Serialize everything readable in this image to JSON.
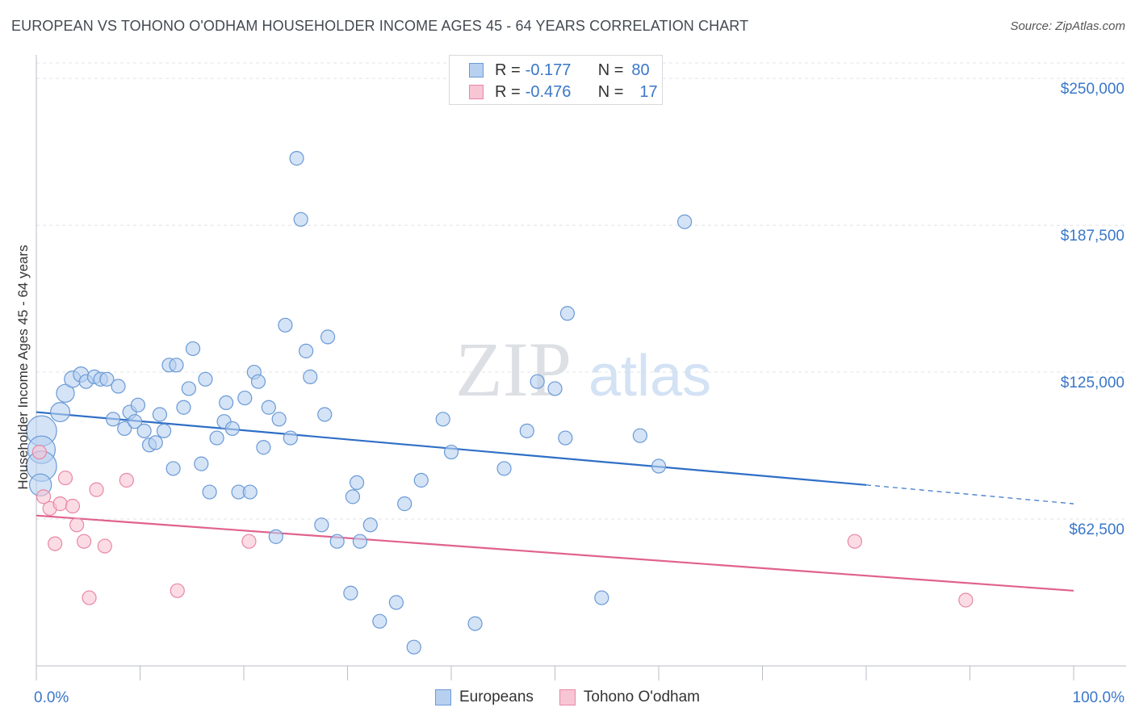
{
  "title": "EUROPEAN VS TOHONO O'ODHAM HOUSEHOLDER INCOME AGES 45 - 64 YEARS CORRELATION CHART",
  "source": "Source: ZipAtlas.com",
  "watermark": {
    "zip": "ZIP",
    "atlas": "atlas"
  },
  "colors": {
    "blue_fill": "#b7d0f0",
    "blue_stroke": "#6a9ad6",
    "blue_line": "#2f6fc6",
    "pink_fill": "#f8c5d4",
    "pink_stroke": "#e887a6",
    "pink_line": "#e0628d",
    "axis_label": "#3a77c9",
    "grid": "#dfe3e8"
  },
  "legend_top": [
    {
      "r_label": "R =",
      "r_value": "-0.177",
      "n_label": "N =",
      "n_value": "80"
    },
    {
      "r_label": "R =",
      "r_value": "-0.476",
      "n_label": "N =",
      "n_value": "17"
    }
  ],
  "legend_bottom": [
    "Europeans",
    "Tohono O'odham"
  ],
  "chart_data": {
    "type": "scatter",
    "title": "EUROPEAN VS TOHONO O'ODHAM HOUSEHOLDER INCOME AGES 45 - 64 YEARS CORRELATION CHART",
    "xlabel": "",
    "ylabel": "Householder Income Ages 45 - 64 years",
    "xlim": [
      0,
      100
    ],
    "ylim": [
      0,
      260000
    ],
    "x_tick_labels": [
      "0.0%",
      "100.0%"
    ],
    "y_ticks": [
      62500,
      125000,
      187500,
      250000
    ],
    "y_tick_labels": [
      "$62,500",
      "$125,000",
      "$187,500",
      "$250,000"
    ],
    "grid": true,
    "legend_position": "top-center",
    "series": [
      {
        "name": "Europeans",
        "r": -0.177,
        "n": 80,
        "trend": {
          "x0": 0,
          "y0": 108000,
          "x1": 80,
          "y1": 77000,
          "dash_to_x": 100,
          "dash_to_y": 69000
        },
        "points": [
          [
            0.5,
            100000,
            2.2
          ],
          [
            0.5,
            92000,
            2.0
          ],
          [
            0.5,
            85000,
            2.2
          ],
          [
            0.4,
            77000,
            1.6
          ],
          [
            2.3,
            108000,
            1.4
          ],
          [
            2.8,
            116000,
            1.3
          ],
          [
            3.5,
            122000,
            1.2
          ],
          [
            4.3,
            124000,
            1.1
          ],
          [
            4.8,
            121000,
            1.0
          ],
          [
            5.6,
            123000,
            1.0
          ],
          [
            6.2,
            122000,
            1.0
          ],
          [
            6.8,
            122000,
            1.0
          ],
          [
            7.9,
            119000,
            1.0
          ],
          [
            7.4,
            105000,
            1.0
          ],
          [
            8.5,
            101000,
            1.0
          ],
          [
            9.0,
            108000,
            1.0
          ],
          [
            9.5,
            104000,
            1.0
          ],
          [
            9.8,
            111000,
            1.0
          ],
          [
            10.4,
            100000,
            1.0
          ],
          [
            10.9,
            94000,
            1.0
          ],
          [
            11.5,
            95000,
            1.0
          ],
          [
            11.9,
            107000,
            1.0
          ],
          [
            12.3,
            100000,
            1.0
          ],
          [
            12.8,
            128000,
            1.0
          ],
          [
            13.2,
            84000,
            1.0
          ],
          [
            13.5,
            128000,
            1.0
          ],
          [
            14.2,
            110000,
            1.0
          ],
          [
            14.7,
            118000,
            1.0
          ],
          [
            15.1,
            135000,
            1.0
          ],
          [
            15.9,
            86000,
            1.0
          ],
          [
            16.3,
            122000,
            1.0
          ],
          [
            16.7,
            74000,
            1.0
          ],
          [
            17.4,
            97000,
            1.0
          ],
          [
            18.1,
            104000,
            1.0
          ],
          [
            18.3,
            112000,
            1.0
          ],
          [
            18.9,
            101000,
            1.0
          ],
          [
            19.5,
            74000,
            1.0
          ],
          [
            20.1,
            114000,
            1.0
          ],
          [
            20.6,
            74000,
            1.0
          ],
          [
            21.0,
            125000,
            1.0
          ],
          [
            21.4,
            121000,
            1.0
          ],
          [
            21.9,
            93000,
            1.0
          ],
          [
            22.4,
            110000,
            1.0
          ],
          [
            23.1,
            55000,
            1.0
          ],
          [
            23.4,
            105000,
            1.0
          ],
          [
            24.0,
            145000,
            1.0
          ],
          [
            24.5,
            97000,
            1.0
          ],
          [
            25.1,
            216000,
            1.0
          ],
          [
            25.5,
            190000,
            1.0
          ],
          [
            26.0,
            134000,
            1.0
          ],
          [
            26.4,
            123000,
            1.0
          ],
          [
            27.5,
            60000,
            1.0
          ],
          [
            27.8,
            107000,
            1.0
          ],
          [
            28.1,
            140000,
            1.0
          ],
          [
            29.0,
            53000,
            1.0
          ],
          [
            30.3,
            31000,
            1.0
          ],
          [
            30.5,
            72000,
            1.0
          ],
          [
            30.9,
            78000,
            1.0
          ],
          [
            31.2,
            53000,
            1.0
          ],
          [
            32.2,
            60000,
            1.0
          ],
          [
            33.1,
            19000,
            1.0
          ],
          [
            34.7,
            27000,
            1.0
          ],
          [
            35.5,
            69000,
            1.0
          ],
          [
            36.4,
            8000,
            1.0
          ],
          [
            37.1,
            79000,
            1.0
          ],
          [
            39.2,
            105000,
            1.0
          ],
          [
            40.0,
            91000,
            1.0
          ],
          [
            42.3,
            18000,
            1.0
          ],
          [
            45.1,
            84000,
            1.0
          ],
          [
            47.3,
            100000,
            1.0
          ],
          [
            48.3,
            121000,
            1.0
          ],
          [
            50.0,
            118000,
            1.0
          ],
          [
            51.0,
            97000,
            1.0
          ],
          [
            51.2,
            150000,
            1.0
          ],
          [
            54.5,
            29000,
            1.0
          ],
          [
            58.2,
            98000,
            1.0
          ],
          [
            60.0,
            85000,
            1.0
          ],
          [
            62.5,
            189000,
            1.0
          ]
        ]
      },
      {
        "name": "Tohono O'odham",
        "r": -0.476,
        "n": 17,
        "trend": {
          "x0": 0,
          "y0": 64000,
          "x1": 100,
          "y1": 32000
        },
        "points": [
          [
            0.3,
            91000,
            1.0
          ],
          [
            0.7,
            72000,
            1.0
          ],
          [
            1.3,
            67000,
            1.0
          ],
          [
            1.8,
            52000,
            1.0
          ],
          [
            2.3,
            69000,
            1.0
          ],
          [
            2.8,
            80000,
            1.0
          ],
          [
            3.5,
            68000,
            1.0
          ],
          [
            3.9,
            60000,
            1.0
          ],
          [
            4.6,
            53000,
            1.0
          ],
          [
            5.1,
            29000,
            1.0
          ],
          [
            5.8,
            75000,
            1.0
          ],
          [
            6.6,
            51000,
            1.0
          ],
          [
            8.7,
            79000,
            1.0
          ],
          [
            13.6,
            32000,
            1.0
          ],
          [
            20.5,
            53000,
            1.0
          ],
          [
            78.9,
            53000,
            1.0
          ],
          [
            89.6,
            28000,
            1.0
          ]
        ]
      }
    ]
  }
}
